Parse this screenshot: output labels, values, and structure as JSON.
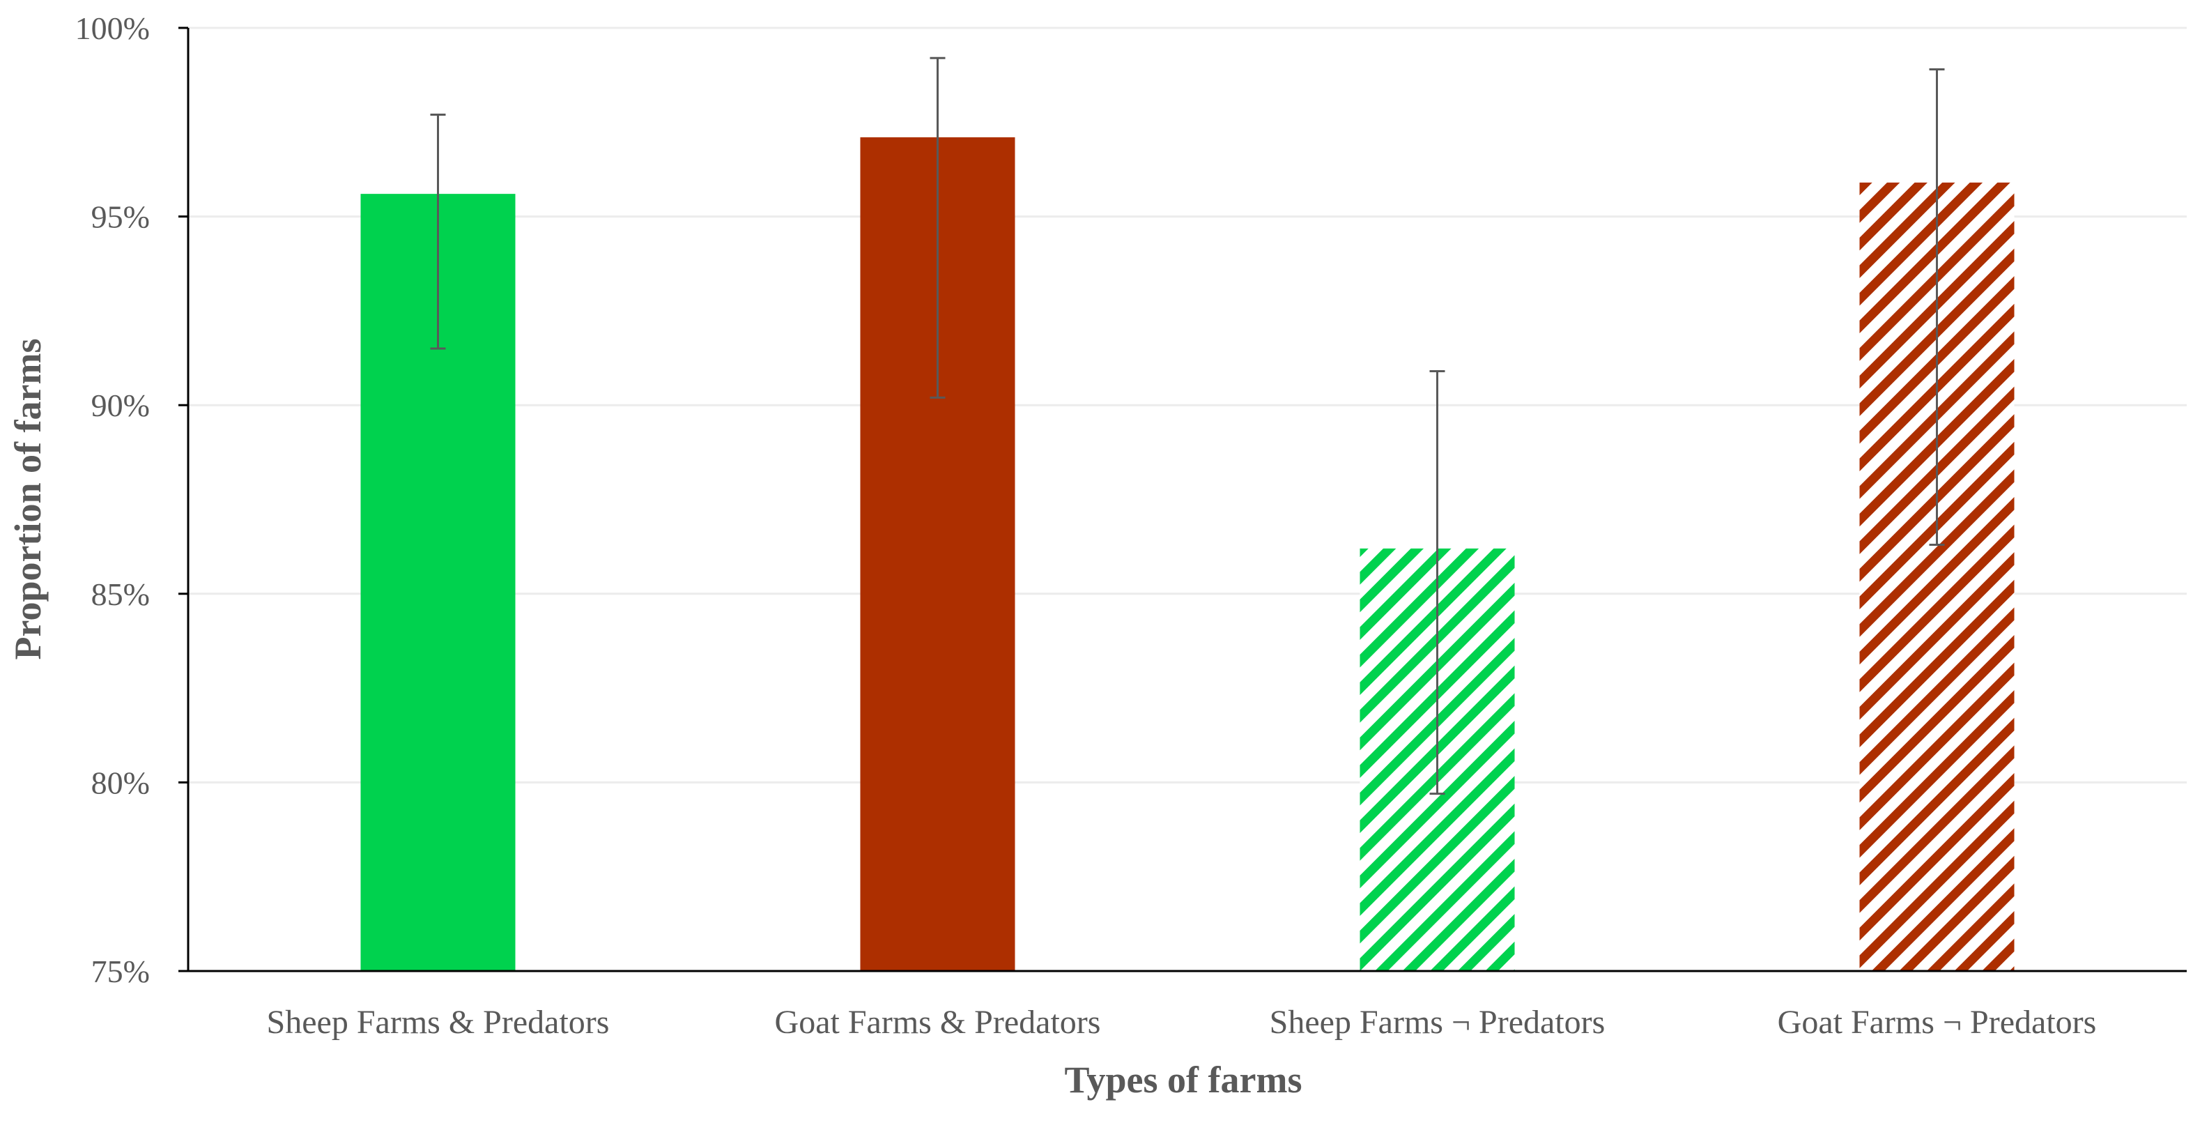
{
  "chart_data": {
    "type": "bar",
    "title": "",
    "xlabel": "Types of farms",
    "ylabel": "Proportion of farms",
    "ylim": [
      75,
      100
    ],
    "y_unit": "%",
    "yticks": [
      75,
      80,
      85,
      90,
      95,
      100
    ],
    "ytick_labels": [
      "75%",
      "80%",
      "85%",
      "90%",
      "95%",
      "100%"
    ],
    "grid": true,
    "legend": "none",
    "categories": [
      "Sheep Farms & Predators",
      "Goat Farms & Predators",
      "Sheep Farms ¬ Predators",
      "Goat Farms ¬ Predators"
    ],
    "values": [
      95.6,
      97.1,
      86.2,
      95.9
    ],
    "error_low": [
      91.5,
      90.2,
      79.7,
      86.3
    ],
    "error_high": [
      97.7,
      99.2,
      90.9,
      98.9
    ],
    "bar_colors": [
      "#00d24e",
      "#ad2f00",
      "#00d24e",
      "#ad2f00"
    ],
    "bar_fill": [
      "solid",
      "solid",
      "hatched",
      "hatched"
    ]
  }
}
